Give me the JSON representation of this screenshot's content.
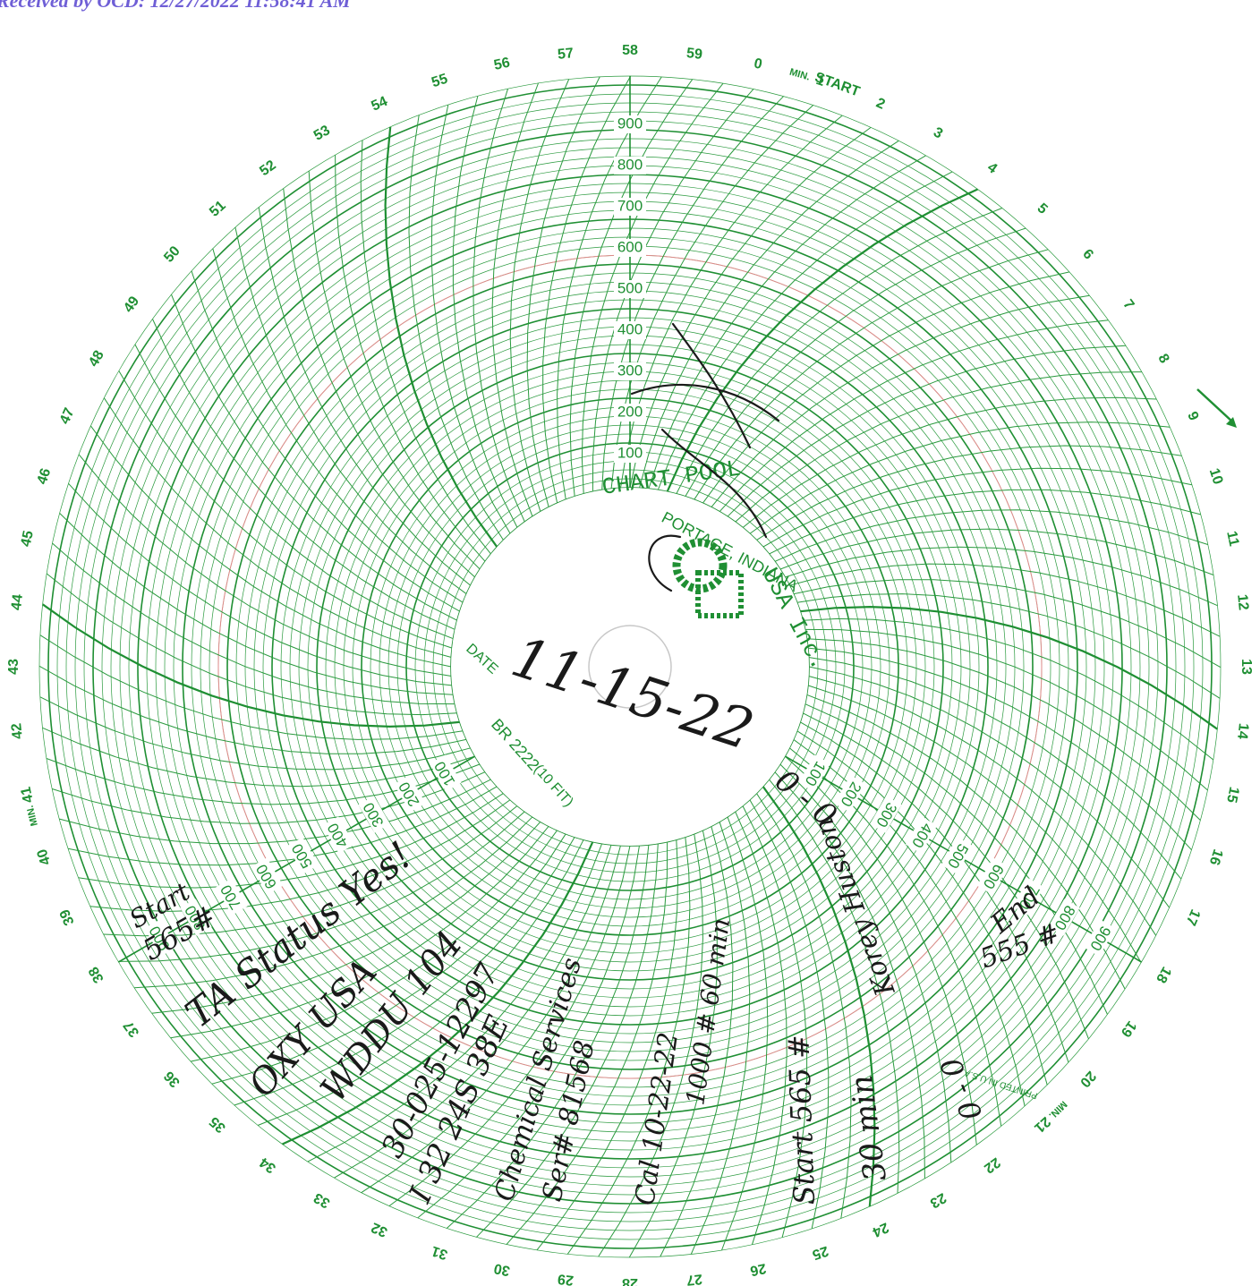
{
  "stamp": "Received by OCD: 12/27/2022 11:58:41 AM",
  "colors": {
    "grid": "#1f8f33",
    "ink": "#1a1a1a",
    "stamp": "#6f5fd6",
    "red_ring": "#e08a8a"
  },
  "chart": {
    "minutes": [
      "0",
      "1",
      "2",
      "3",
      "4",
      "5",
      "6",
      "7",
      "8",
      "9",
      "10",
      "11",
      "12",
      "13",
      "14",
      "15",
      "16",
      "17",
      "18",
      "19",
      "20",
      "21",
      "22",
      "23",
      "24",
      "25",
      "26",
      "27",
      "28",
      "29",
      "30",
      "31",
      "32",
      "33",
      "34",
      "35",
      "36",
      "37",
      "38",
      "39",
      "40",
      "41",
      "42",
      "43",
      "44",
      "45",
      "46",
      "47",
      "48",
      "49",
      "50",
      "51",
      "52",
      "53",
      "54",
      "55",
      "56",
      "57",
      "58",
      "59"
    ],
    "min_label": "MIN.",
    "start_label": "START",
    "scale_values": [
      "100",
      "200",
      "300",
      "400",
      "500",
      "600",
      "700",
      "800",
      "900"
    ],
    "logo_name": "CHART POOL",
    "logo_city": "PORTAGE, INDIANA",
    "logo_company": "USA Inc.",
    "date_label": "DATE",
    "chart_number": "BR 2222",
    "fit_label": "(10 FIT)",
    "printed": "PRINTED IN U.S.A."
  },
  "handwriting": {
    "date": "11-15-22",
    "start": "Start",
    "start_value": "565#",
    "line1": "TA Status Yes!",
    "line2": "OXY USA",
    "line3": "WDDU 104",
    "line4": "30-025-12297",
    "line5": "I 32 24S 38E",
    "line6": "Chemical Services",
    "line7": "Ser# 81568",
    "line8": "Cal 10-22-22",
    "line9": "1000 # 60 min",
    "line10": "Start 565 #",
    "line11": "End 555 #",
    "line12": "30 min",
    "line13": "Korey Huston",
    "line14": "0 - 0",
    "end": "End",
    "end_value": "555 #"
  }
}
